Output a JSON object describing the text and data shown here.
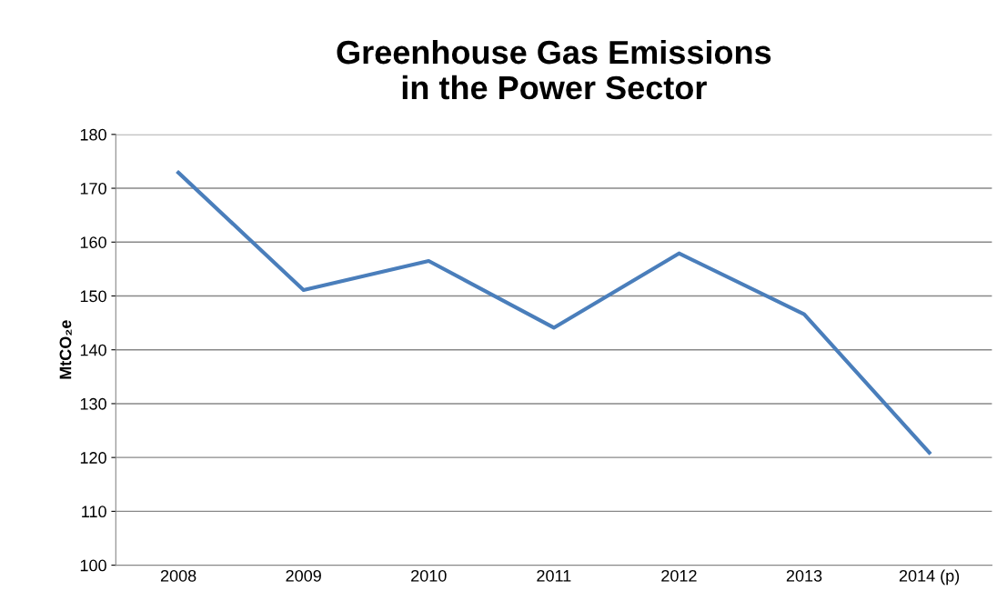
{
  "chart_data": {
    "type": "line",
    "title": "Greenhouse Gas Emissions\nin the Power Sector",
    "ylabel": "MtCO₂e",
    "categories": [
      "2008",
      "2009",
      "2010",
      "2011",
      "2012",
      "2013",
      "2014 (p)"
    ],
    "series": [
      {
        "color": "#4a7ebb",
        "values": [
          172.9,
          151.1,
          156.5,
          144.1,
          157.9,
          146.6,
          120.9
        ]
      }
    ],
    "ylim": [
      100,
      180
    ],
    "yticks": [
      100,
      110,
      120,
      130,
      140,
      150,
      160,
      170,
      180
    ],
    "grid": "y",
    "legend": false,
    "marker": "none",
    "line_style": "solid"
  }
}
